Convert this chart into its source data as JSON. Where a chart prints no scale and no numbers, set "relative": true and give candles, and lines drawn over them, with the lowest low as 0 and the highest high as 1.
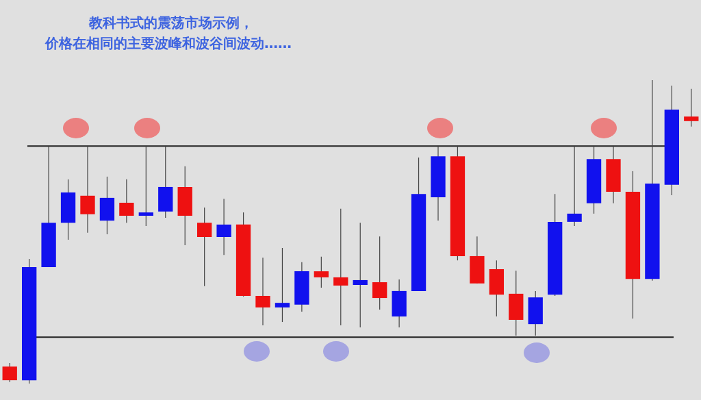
{
  "chart_data": {
    "type": "candlestick",
    "title": "教科书式的震荡市场示例，",
    "subtitle": "价格在相同的主要波峰和波谷间波动……",
    "relative": true,
    "categories": [
      null,
      null,
      null,
      null,
      null,
      null,
      null,
      null,
      null,
      null,
      null,
      null,
      null,
      null,
      null,
      null,
      null,
      null,
      null,
      null,
      null,
      null,
      null,
      null,
      null,
      null,
      null,
      null,
      null,
      null,
      null,
      null,
      null,
      null,
      null,
      null
    ],
    "ohlc": [
      [
        0.056,
        0.068,
        0.005,
        0.011
      ],
      [
        0.011,
        0.411,
        0,
        0.384
      ],
      [
        0.384,
        0.783,
        0.384,
        0.53
      ],
      [
        0.53,
        0.673,
        0.474,
        0.63
      ],
      [
        0.619,
        0.783,
        0.497,
        0.558
      ],
      [
        0.537,
        0.682,
        0.492,
        0.612
      ],
      [
        0.596,
        0.673,
        0.53,
        0.553
      ],
      [
        0.553,
        0.783,
        0.519,
        0.564
      ],
      [
        0.567,
        0.783,
        0.546,
        0.648
      ],
      [
        0.648,
        0.716,
        0.456,
        0.553
      ],
      [
        0.53,
        0.58,
        0.321,
        0.483
      ],
      [
        0.483,
        0.609,
        0.424,
        0.524
      ],
      [
        0.524,
        0.564,
        0.287,
        0.289
      ],
      [
        0.289,
        0.415,
        0.192,
        0.251
      ],
      [
        0.251,
        0.447,
        0.203,
        0.266
      ],
      [
        0.26,
        0.4,
        0.237,
        0.37
      ],
      [
        0.37,
        0.418,
        0.316,
        0.35
      ],
      [
        0.35,
        0.576,
        0.192,
        0.323
      ],
      [
        0.325,
        0.53,
        0.185,
        0.341
      ],
      [
        0.334,
        0.485,
        0.244,
        0.282
      ],
      [
        0.221,
        0.343,
        0.185,
        0.305
      ],
      [
        0.305,
        0.745,
        0.305,
        0.625
      ],
      [
        0.614,
        0.783,
        0.537,
        0.749
      ],
      [
        0.749,
        0.783,
        0.406,
        0.42
      ],
      [
        0.42,
        0.485,
        0.33,
        0.33
      ],
      [
        0.377,
        0.406,
        0.221,
        0.293
      ],
      [
        0.296,
        0.372,
        0.158,
        0.21
      ],
      [
        0.196,
        0.305,
        0.158,
        0.284
      ],
      [
        0.293,
        0.625,
        0.289,
        0.533
      ],
      [
        0.533,
        0.783,
        0.519,
        0.56
      ],
      [
        0.594,
        0.783,
        0.56,
        0.74
      ],
      [
        0.74,
        0.783,
        0.594,
        0.632
      ],
      [
        0.632,
        0.7,
        0.214,
        0.345
      ],
      [
        0.345,
        1,
        0.339,
        0.659
      ],
      [
        0.655,
        0.982,
        0.621,
        0.903
      ],
      [
        0.88,
        0.971,
        0.847,
        0.865
      ]
    ],
    "colors": [
      "#ee1111",
      "#1111ee",
      "#1111ee",
      "#1111ee",
      "#ee1111",
      "#1111ee",
      "#ee1111",
      "#1111ee",
      "#1111ee",
      "#ee1111",
      "#ee1111",
      "#1111ee",
      "#ee1111",
      "#ee1111",
      "#1111ee",
      "#1111ee",
      "#ee1111",
      "#ee1111",
      "#1111ee",
      "#ee1111",
      "#1111ee",
      "#1111ee",
      "#1111ee",
      "#ee1111",
      "#ee1111",
      "#ee1111",
      "#ee1111",
      "#1111ee",
      "#1111ee",
      "#1111ee",
      "#1111ee",
      "#ee1111",
      "#ee1111",
      "#1111ee",
      "#1111ee",
      "#ee1111"
    ],
    "ref_lines": [
      {
        "axis": "y",
        "value": 0.783,
        "color": "#222222"
      },
      {
        "axis": "y",
        "value": 0.153,
        "color": "#222222"
      }
    ]
  }
}
